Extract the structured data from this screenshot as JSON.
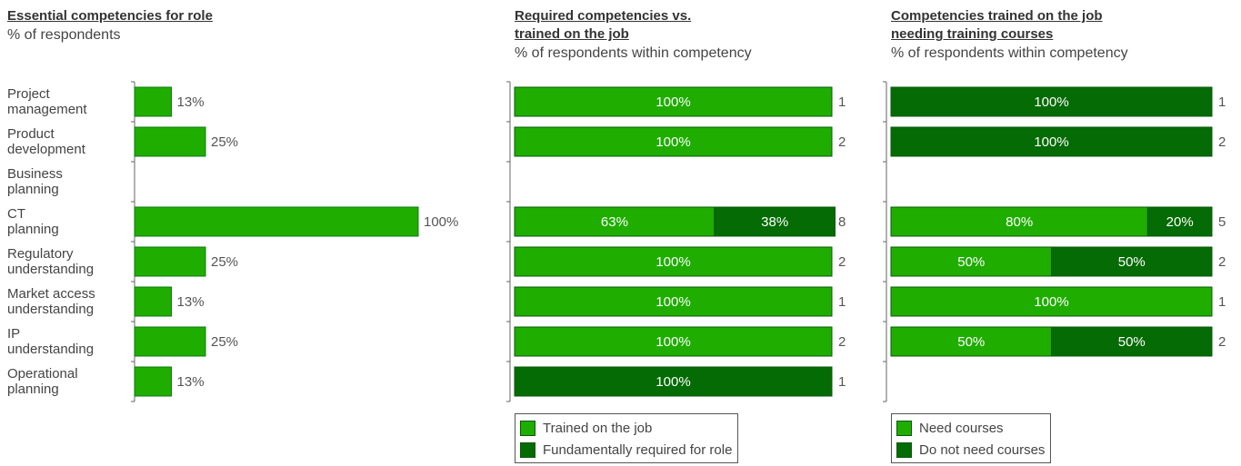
{
  "chart_data": [
    {
      "type": "bar",
      "title": "Essential competencies for role",
      "subtitle": "% of respondents",
      "categories": [
        "Project\nmanagement",
        "Product\ndevelopment",
        "Business\nplanning",
        "CT\nplanning",
        "Regulatory\nunderstanding",
        "Market access\nunderstanding",
        "IP\nunderstanding",
        "Operational\nplanning"
      ],
      "values": [
        13,
        25,
        null,
        100,
        25,
        13,
        25,
        13
      ],
      "value_labels": [
        "13%",
        "25%",
        null,
        "100%",
        "25%",
        "13%",
        "25%",
        "13%"
      ],
      "color": "#1fad00",
      "xlim": [
        0,
        100
      ]
    },
    {
      "type": "stacked_bar",
      "title": "Required competencies vs. trained on the job",
      "subtitle": "% of respondents within competency",
      "series": [
        {
          "name": "Trained on the job",
          "color": "#1fad00",
          "values": [
            100,
            100,
            null,
            63,
            100,
            100,
            100,
            null
          ],
          "value_labels": [
            "100%",
            "100%",
            null,
            "63%",
            "100%",
            "100%",
            "100%",
            null
          ]
        },
        {
          "name": "Fundamentally required for role",
          "color": "#056b05",
          "values": [
            null,
            null,
            null,
            38,
            null,
            null,
            null,
            100
          ],
          "value_labels": [
            null,
            null,
            null,
            "38%",
            null,
            null,
            null,
            "100%"
          ]
        }
      ],
      "counts": [
        1,
        2,
        null,
        8,
        2,
        1,
        2,
        1
      ],
      "xlim": [
        0,
        100
      ]
    },
    {
      "type": "stacked_bar",
      "title": "Competencies trained on the job needing training courses",
      "subtitle": "% of respondents within competency",
      "series": [
        {
          "name": "Need courses",
          "color": "#1fad00",
          "values": [
            null,
            null,
            null,
            80,
            50,
            100,
            50,
            null
          ],
          "value_labels": [
            null,
            null,
            null,
            "80%",
            "50%",
            "100%",
            "50%",
            null
          ]
        },
        {
          "name": "Do not need courses",
          "color": "#056b05",
          "values": [
            100,
            100,
            null,
            20,
            50,
            null,
            50,
            null
          ],
          "value_labels": [
            "100%",
            "100%",
            null,
            "20%",
            "50%",
            null,
            "50%",
            null
          ]
        }
      ],
      "counts": [
        1,
        2,
        null,
        5,
        2,
        1,
        2,
        null
      ],
      "xlim": [
        0,
        100
      ]
    }
  ]
}
